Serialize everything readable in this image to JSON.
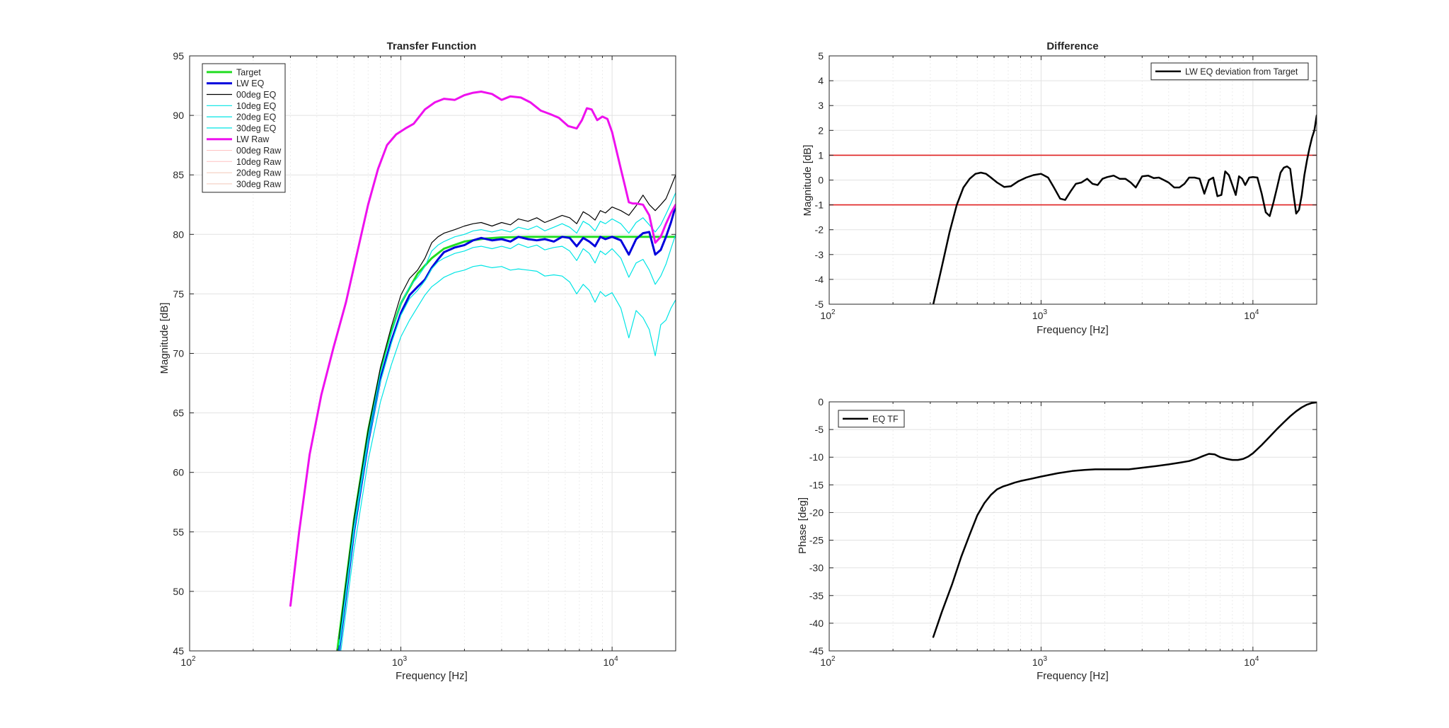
{
  "chart_data": [
    {
      "id": "tf",
      "type": "line",
      "title": "Transfer Function",
      "xlabel": "Frequency [Hz]",
      "ylabel": "Magnitude [dB]",
      "xscale": "log",
      "xlim": [
        100,
        20000
      ],
      "ylim": [
        45,
        95
      ],
      "yticks": [
        45,
        50,
        55,
        60,
        65,
        70,
        75,
        80,
        85,
        90,
        95
      ],
      "xticks": [
        {
          "value": 100,
          "base": "10",
          "exp": "2"
        },
        {
          "value": 1000,
          "base": "10",
          "exp": "3"
        },
        {
          "value": 10000,
          "base": "10",
          "exp": "4"
        }
      ],
      "grid": true,
      "legend_position": "top-left",
      "series": [
        {
          "name": "Target",
          "color": "#22dd22",
          "width": 3,
          "legend": true,
          "x": [
            500,
            600,
            700,
            800,
            900,
            1000,
            1200,
            1400,
            1600,
            2000,
            2500,
            3000,
            4000,
            5000,
            7000,
            10000,
            15000,
            20000
          ],
          "y": [
            45,
            56,
            63.5,
            68.5,
            71.8,
            74.2,
            76.7,
            78.0,
            78.8,
            79.4,
            79.65,
            79.75,
            79.8,
            79.8,
            79.8,
            79.8,
            79.8,
            79.8
          ]
        },
        {
          "name": "LW EQ",
          "color": "#0000dd",
          "width": 3,
          "legend": true,
          "x": [
            510,
            600,
            700,
            800,
            900,
            1000,
            1100,
            1200,
            1300,
            1400,
            1500,
            1600,
            1800,
            2000,
            2200,
            2400,
            2700,
            3000,
            3300,
            3600,
            4000,
            4400,
            4800,
            5300,
            5800,
            6300,
            6800,
            7300,
            7800,
            8300,
            8800,
            9300,
            10000,
            11000,
            12000,
            13000,
            14000,
            15000,
            16000,
            17000,
            18000,
            19000,
            20000
          ],
          "y": [
            45,
            55,
            62.5,
            67.8,
            71.0,
            73.4,
            74.9,
            75.6,
            76.2,
            77.2,
            77.9,
            78.5,
            78.9,
            79.1,
            79.5,
            79.7,
            79.5,
            79.6,
            79.4,
            79.8,
            79.6,
            79.5,
            79.6,
            79.4,
            79.8,
            79.7,
            79.0,
            79.7,
            79.4,
            79.0,
            79.8,
            79.6,
            79.8,
            79.5,
            78.3,
            79.6,
            80.1,
            80.2,
            78.3,
            78.7,
            79.8,
            81.0,
            82.4
          ]
        },
        {
          "name": "00deg EQ",
          "color": "#000000",
          "width": 1.2,
          "legend": true,
          "x": [
            510,
            600,
            700,
            800,
            900,
            1000,
            1100,
            1200,
            1300,
            1400,
            1500,
            1600,
            1800,
            2000,
            2200,
            2400,
            2700,
            3000,
            3300,
            3600,
            4000,
            4400,
            4800,
            5300,
            5800,
            6300,
            6800,
            7300,
            7800,
            8300,
            8800,
            9300,
            10000,
            11000,
            12000,
            13000,
            14000,
            15000,
            16000,
            17000,
            18000,
            19000,
            20000
          ],
          "y": [
            46,
            56,
            63.5,
            68.8,
            72.2,
            74.9,
            76.3,
            77.0,
            78.0,
            79.3,
            79.8,
            80.1,
            80.4,
            80.7,
            80.9,
            81.0,
            80.7,
            81.0,
            80.8,
            81.3,
            81.1,
            81.4,
            81.0,
            81.3,
            81.6,
            81.4,
            80.9,
            81.9,
            81.6,
            81.2,
            82.0,
            81.8,
            82.3,
            82.0,
            81.6,
            82.4,
            83.3,
            82.5,
            82.0,
            82.5,
            83.0,
            84.0,
            85.0
          ]
        },
        {
          "name": "10deg EQ",
          "color": "#00e5e5",
          "width": 1.2,
          "legend": true,
          "x": [
            510,
            600,
            700,
            800,
            900,
            1000,
            1100,
            1200,
            1300,
            1400,
            1500,
            1600,
            1800,
            2000,
            2200,
            2400,
            2700,
            3000,
            3300,
            3600,
            4000,
            4400,
            4800,
            5300,
            5800,
            6300,
            6800,
            7300,
            7800,
            8300,
            8800,
            9300,
            10000,
            11000,
            12000,
            13000,
            14000,
            15000,
            16000,
            17000,
            18000,
            19000,
            20000
          ],
          "y": [
            45.5,
            55.5,
            63.0,
            68.3,
            71.6,
            74.2,
            75.6,
            76.4,
            77.3,
            78.6,
            79.1,
            79.4,
            79.8,
            80.0,
            80.3,
            80.4,
            80.2,
            80.4,
            80.2,
            80.6,
            80.4,
            80.7,
            80.3,
            80.6,
            80.9,
            80.6,
            80.1,
            81.1,
            80.8,
            80.3,
            81.1,
            80.9,
            81.3,
            80.9,
            80.1,
            81.0,
            81.4,
            80.8,
            80.2,
            80.8,
            81.7,
            82.6,
            83.5
          ]
        },
        {
          "name": "20deg EQ",
          "color": "#00e5e5",
          "width": 1.2,
          "legend": true,
          "x": [
            510,
            600,
            700,
            800,
            900,
            1000,
            1100,
            1200,
            1300,
            1400,
            1500,
            1600,
            1800,
            2000,
            2200,
            2400,
            2700,
            3000,
            3300,
            3600,
            4000,
            4400,
            4800,
            5300,
            5800,
            6300,
            6800,
            7300,
            7800,
            8300,
            8800,
            9300,
            10000,
            11000,
            12000,
            13000,
            14000,
            15000,
            16000,
            17000,
            18000,
            19000,
            20000
          ],
          "y": [
            45,
            55,
            62.5,
            67.6,
            70.8,
            73.2,
            74.6,
            75.3,
            76.1,
            77.1,
            77.7,
            78.0,
            78.4,
            78.6,
            78.9,
            79.0,
            78.8,
            79.0,
            78.8,
            79.2,
            78.9,
            79.1,
            78.7,
            78.9,
            79.0,
            78.6,
            77.8,
            78.8,
            78.4,
            77.6,
            78.6,
            78.3,
            78.8,
            78.0,
            76.4,
            77.6,
            77.9,
            77.0,
            75.8,
            76.5,
            77.5,
            78.8,
            80.0
          ]
        },
        {
          "name": "30deg EQ",
          "color": "#00e5e5",
          "width": 1.2,
          "legend": true,
          "x": [
            520,
            600,
            700,
            800,
            900,
            1000,
            1100,
            1200,
            1300,
            1400,
            1500,
            1600,
            1800,
            2000,
            2200,
            2400,
            2700,
            3000,
            3300,
            3600,
            4000,
            4400,
            4800,
            5300,
            5800,
            6300,
            6800,
            7300,
            7800,
            8300,
            8800,
            9300,
            10000,
            11000,
            12000,
            13000,
            14000,
            15000,
            16000,
            17000,
            18000,
            19000,
            20000
          ],
          "y": [
            45,
            53.5,
            61.0,
            65.9,
            69.0,
            71.4,
            72.8,
            73.9,
            74.9,
            75.6,
            76.0,
            76.4,
            76.8,
            77.0,
            77.3,
            77.4,
            77.2,
            77.3,
            77.0,
            77.1,
            77.0,
            76.9,
            76.5,
            76.6,
            76.5,
            76.0,
            75.0,
            75.8,
            75.3,
            74.3,
            75.2,
            74.8,
            75.1,
            73.8,
            71.3,
            73.6,
            73.0,
            72.0,
            69.8,
            72.4,
            72.8,
            73.8,
            74.5
          ]
        },
        {
          "name": "LW Raw",
          "color": "#ee11ee",
          "width": 3,
          "legend": true,
          "x": [
            300,
            330,
            370,
            420,
            480,
            550,
            620,
            700,
            780,
            860,
            950,
            1050,
            1150,
            1300,
            1450,
            1600,
            1800,
            2000,
            2200,
            2400,
            2700,
            3000,
            3300,
            3700,
            4100,
            4600,
            5100,
            5600,
            6200,
            6800,
            7200,
            7600,
            8000,
            8500,
            9000,
            9500,
            10000,
            10500,
            11000,
            11500,
            12000,
            12500,
            13000,
            14000,
            15000,
            16000,
            17000,
            18000,
            19000,
            20000
          ],
          "y": [
            48.8,
            55.0,
            61.5,
            66.5,
            70.5,
            74.3,
            78.4,
            82.5,
            85.5,
            87.5,
            88.4,
            88.9,
            89.3,
            90.5,
            91.1,
            91.4,
            91.3,
            91.7,
            91.9,
            92.0,
            91.8,
            91.3,
            91.6,
            91.5,
            91.1,
            90.4,
            90.1,
            89.8,
            89.1,
            88.9,
            89.6,
            90.6,
            90.5,
            89.6,
            89.9,
            89.7,
            88.6,
            87.0,
            85.5,
            84.1,
            82.7,
            82.6,
            82.6,
            82.5,
            81.6,
            79.3,
            79.8,
            80.9,
            81.8,
            82.5
          ]
        },
        {
          "name": "00deg Raw",
          "color": "#ffc2c2",
          "width": 1,
          "legend": true,
          "faded": true,
          "x": [],
          "y": []
        },
        {
          "name": "10deg Raw",
          "color": "#ffc2c2",
          "width": 1,
          "legend": true,
          "faded": true,
          "x": [],
          "y": []
        },
        {
          "name": "20deg Raw",
          "color": "#f2c8b8",
          "width": 1,
          "legend": true,
          "faded": true,
          "x": [],
          "y": []
        },
        {
          "name": "30deg Raw",
          "color": "#f2c8b8",
          "width": 1,
          "legend": true,
          "faded": true,
          "x": [],
          "y": []
        }
      ]
    },
    {
      "id": "diff",
      "type": "line",
      "title": "Difference",
      "xlabel": "Frequency [Hz]",
      "ylabel": "Magnitude [dB]",
      "xscale": "log",
      "xlim": [
        100,
        20000
      ],
      "ylim": [
        -5,
        5
      ],
      "yticks": [
        -5,
        -4,
        -3,
        -2,
        -1,
        0,
        1,
        2,
        3,
        4,
        5
      ],
      "xticks": [
        {
          "value": 100,
          "base": "10",
          "exp": "2"
        },
        {
          "value": 1000,
          "base": "10",
          "exp": "3"
        },
        {
          "value": 10000,
          "base": "10",
          "exp": "4"
        }
      ],
      "grid": true,
      "legend_position": "top-right",
      "hlines": [
        {
          "y": 1,
          "color": "#e02020"
        },
        {
          "y": -1,
          "color": "#e02020"
        }
      ],
      "series": [
        {
          "name": "LW EQ deviation from Target",
          "color": "#000000",
          "width": 2.5,
          "legend": true,
          "x": [
            310,
            340,
            370,
            400,
            430,
            460,
            490,
            520,
            550,
            580,
            620,
            670,
            720,
            780,
            850,
            920,
            1000,
            1080,
            1150,
            1230,
            1300,
            1380,
            1460,
            1550,
            1650,
            1750,
            1850,
            1950,
            2050,
            2200,
            2350,
            2500,
            2650,
            2800,
            3000,
            3200,
            3400,
            3600,
            3800,
            4000,
            4250,
            4500,
            4750,
            5000,
            5300,
            5600,
            5900,
            6200,
            6500,
            6800,
            7100,
            7400,
            7700,
            8000,
            8300,
            8600,
            8900,
            9200,
            9600,
            10000,
            10500,
            11000,
            11500,
            12000,
            12500,
            13000,
            13500,
            14000,
            14500,
            15000,
            15500,
            16000,
            16500,
            17000,
            17500,
            18000,
            18500,
            19000,
            19500,
            20000
          ],
          "y": [
            -5.0,
            -3.5,
            -2.1,
            -1.0,
            -0.3,
            0.05,
            0.25,
            0.3,
            0.25,
            0.1,
            -0.1,
            -0.28,
            -0.25,
            -0.05,
            0.1,
            0.2,
            0.25,
            0.1,
            -0.3,
            -0.75,
            -0.8,
            -0.45,
            -0.15,
            -0.1,
            0.05,
            -0.15,
            -0.2,
            0.05,
            0.12,
            0.18,
            0.05,
            0.05,
            -0.1,
            -0.3,
            0.15,
            0.18,
            0.08,
            0.1,
            0.0,
            -0.1,
            -0.3,
            -0.3,
            -0.15,
            0.1,
            0.1,
            0.05,
            -0.55,
            0.0,
            0.1,
            -0.65,
            -0.6,
            0.35,
            0.2,
            -0.2,
            -0.6,
            0.15,
            0.05,
            -0.2,
            0.1,
            0.12,
            0.1,
            -0.55,
            -1.3,
            -1.45,
            -0.9,
            -0.3,
            0.3,
            0.5,
            0.55,
            0.45,
            -0.5,
            -1.35,
            -1.2,
            -0.6,
            0.2,
            0.8,
            1.3,
            1.7,
            2.0,
            2.6
          ]
        }
      ]
    },
    {
      "id": "phase",
      "type": "line",
      "title": "",
      "xlabel": "Frequency [Hz]",
      "ylabel": "Phase [deg]",
      "xscale": "log",
      "xlim": [
        100,
        20000
      ],
      "ylim": [
        -45,
        0
      ],
      "yticks": [
        -45,
        -40,
        -35,
        -30,
        -25,
        -20,
        -15,
        -10,
        -5,
        0
      ],
      "xticks": [
        {
          "value": 100,
          "base": "10",
          "exp": "2"
        },
        {
          "value": 1000,
          "base": "10",
          "exp": "3"
        },
        {
          "value": 10000,
          "base": "10",
          "exp": "4"
        }
      ],
      "grid": true,
      "legend_position": "top-left",
      "series": [
        {
          "name": "EQ TF",
          "color": "#000000",
          "width": 2.5,
          "legend": true,
          "x": [
            310,
            340,
            380,
            420,
            460,
            500,
            540,
            580,
            620,
            660,
            700,
            750,
            800,
            900,
            1000,
            1200,
            1400,
            1600,
            1800,
            2000,
            2300,
            2600,
            3000,
            3500,
            4000,
            4500,
            5000,
            5400,
            5800,
            6200,
            6600,
            7000,
            7500,
            8000,
            8500,
            9000,
            9500,
            10000,
            11000,
            12000,
            13000,
            14000,
            15000,
            16000,
            17000,
            18000,
            19000,
            20000
          ],
          "y": [
            -42.5,
            -38.0,
            -33.0,
            -28.0,
            -24.0,
            -20.5,
            -18.3,
            -16.8,
            -15.8,
            -15.3,
            -15.0,
            -14.6,
            -14.3,
            -13.9,
            -13.5,
            -12.9,
            -12.5,
            -12.3,
            -12.2,
            -12.2,
            -12.2,
            -12.2,
            -11.9,
            -11.6,
            -11.3,
            -11.0,
            -10.7,
            -10.3,
            -9.8,
            -9.4,
            -9.5,
            -10.0,
            -10.3,
            -10.5,
            -10.5,
            -10.3,
            -9.9,
            -9.3,
            -7.8,
            -6.3,
            -4.9,
            -3.7,
            -2.6,
            -1.7,
            -1.0,
            -0.5,
            -0.2,
            -0.1
          ]
        }
      ]
    }
  ]
}
